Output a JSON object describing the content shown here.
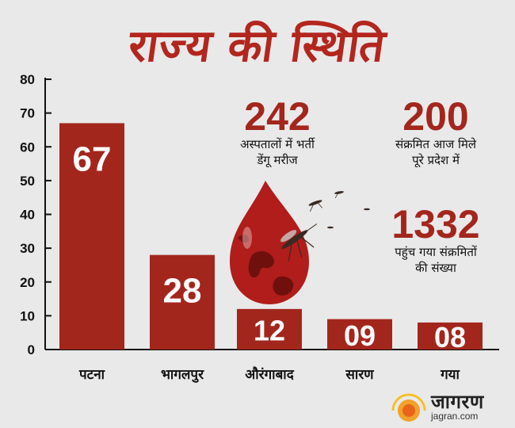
{
  "title": "राज्य की स्थिति",
  "chart_data": {
    "type": "bar",
    "categories": [
      "पटना",
      "भागलपुर",
      "औरंगाबाद",
      "सारण",
      "गया"
    ],
    "values": [
      67,
      28,
      12,
      9,
      8
    ],
    "value_labels": [
      "67",
      "28",
      "12",
      "09",
      "08"
    ],
    "ylim": [
      0,
      80
    ],
    "yticks": [
      0,
      10,
      20,
      30,
      40,
      50,
      60,
      70,
      80
    ],
    "grid": false,
    "bar_color": "#a3261d"
  },
  "stats": [
    {
      "value": "242",
      "caption_lines": [
        "अस्पतालों में भर्ती",
        "डेंगू मरीज"
      ]
    },
    {
      "value": "200",
      "caption_lines": [
        "संक्रमित आज मिले",
        "पूरे प्रदेश में"
      ]
    },
    {
      "value": "1332",
      "caption_lines": [
        "पहुंच गया संक्रमितों",
        "की संख्या"
      ]
    }
  ],
  "brand": {
    "name": "जागरण",
    "url": "jagran.com"
  },
  "colors": {
    "accent": "#b3261e",
    "bar": "#a3261d",
    "drop": "#b01d1a"
  },
  "icons": [
    "blood-drop-globe-icon",
    "mosquito-icon",
    "jagran-sun-logo-icon"
  ]
}
